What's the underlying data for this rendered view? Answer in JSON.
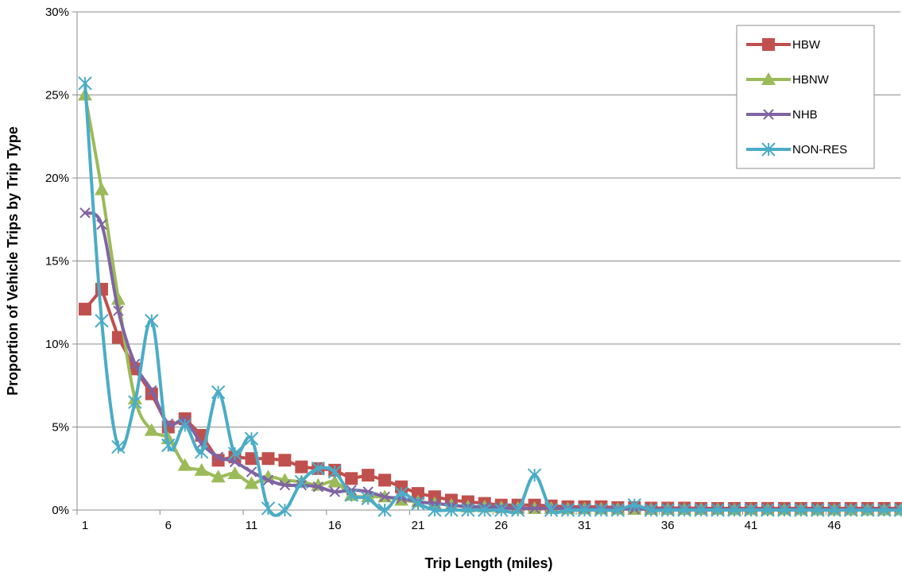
{
  "chart_data": {
    "type": "line",
    "xlabel": "Trip Length (miles)",
    "ylabel": "Proportion of Vehicle Trips by Trip Type",
    "x_tick_labels": [
      "1",
      "6",
      "11",
      "16",
      "21",
      "26",
      "31",
      "36",
      "41",
      "46"
    ],
    "y_tick_labels": [
      "0%",
      "5%",
      "10%",
      "15%",
      "20%",
      "25%",
      "30%"
    ],
    "ylim": [
      0,
      30
    ],
    "xlim": [
      1,
      50
    ],
    "grid": "horizontal",
    "legend_position": "top-right",
    "x": [
      1,
      2,
      3,
      4,
      5,
      6,
      7,
      8,
      9,
      10,
      11,
      12,
      13,
      14,
      15,
      16,
      17,
      18,
      19,
      20,
      21,
      22,
      23,
      24,
      25,
      26,
      27,
      28,
      29,
      30,
      31,
      32,
      33,
      34,
      35,
      36,
      37,
      38,
      39,
      40,
      41,
      42,
      43,
      44,
      45,
      46,
      47,
      48,
      49,
      50
    ],
    "series": [
      {
        "name": "HBW",
        "color": "#C0504D",
        "marker": "square",
        "smooth": false,
        "values": [
          12.1,
          13.3,
          10.4,
          8.5,
          7.0,
          5.0,
          5.5,
          4.5,
          3.0,
          3.2,
          3.1,
          3.1,
          3.0,
          2.6,
          2.5,
          2.4,
          1.9,
          2.1,
          1.8,
          1.4,
          1.0,
          0.8,
          0.6,
          0.5,
          0.4,
          0.3,
          0.3,
          0.3,
          0.25,
          0.2,
          0.2,
          0.2,
          0.15,
          0.15,
          0.12,
          0.12,
          0.12,
          0.1,
          0.1,
          0.1,
          0.1,
          0.1,
          0.1,
          0.1,
          0.1,
          0.1,
          0.1,
          0.1,
          0.1,
          0.1
        ]
      },
      {
        "name": "HBNW",
        "color": "#9BBB59",
        "marker": "triangle",
        "smooth": true,
        "values": [
          25.0,
          19.3,
          12.7,
          6.7,
          4.8,
          4.3,
          2.7,
          2.4,
          2.0,
          2.2,
          1.6,
          2.0,
          1.8,
          1.7,
          1.5,
          1.7,
          0.9,
          0.8,
          0.8,
          0.6,
          0.5,
          0.4,
          0.3,
          0.2,
          0.2,
          0.15,
          0.1,
          0.1,
          0.1,
          0.08,
          0.08,
          0.07,
          0.06,
          0.05,
          0.05,
          0.05,
          0.04,
          0.04,
          0.04,
          0.03,
          0.03,
          0.03,
          0.03,
          0.03,
          0.02,
          0.02,
          0.02,
          0.02,
          0.02,
          0.02
        ]
      },
      {
        "name": "NHB",
        "color": "#8064A2",
        "marker": "x",
        "smooth": true,
        "values": [
          17.9,
          17.2,
          12.0,
          8.8,
          7.2,
          5.2,
          5.4,
          4.0,
          3.2,
          2.9,
          2.3,
          1.8,
          1.5,
          1.5,
          1.4,
          1.1,
          1.2,
          1.1,
          0.8,
          0.7,
          0.5,
          0.4,
          0.3,
          0.2,
          0.2,
          0.15,
          0.1,
          0.1,
          0.1,
          0.1,
          0.08,
          0.08,
          0.07,
          0.06,
          0.06,
          0.05,
          0.05,
          0.05,
          0.05,
          0.04,
          0.04,
          0.04,
          0.04,
          0.04,
          0.03,
          0.03,
          0.03,
          0.03,
          0.03,
          0.03
        ]
      },
      {
        "name": "NON-RES",
        "color": "#4BACC6",
        "marker": "asterisk",
        "smooth": true,
        "values": [
          25.7,
          11.4,
          3.8,
          6.5,
          11.4,
          3.9,
          5.1,
          3.5,
          7.1,
          3.4,
          4.3,
          0.1,
          0.0,
          1.7,
          2.5,
          2.3,
          0.9,
          0.7,
          0.0,
          1.0,
          0.4,
          0.0,
          0.0,
          0.0,
          0.0,
          0.0,
          0.0,
          2.1,
          0.0,
          0.0,
          0.0,
          0.0,
          0.0,
          0.3,
          0.0,
          0.0,
          0.0,
          0.0,
          0.0,
          0.0,
          0.0,
          0.0,
          0.0,
          0.0,
          0.0,
          0.0,
          0.0,
          0.0,
          0.0,
          0.0
        ]
      }
    ]
  }
}
